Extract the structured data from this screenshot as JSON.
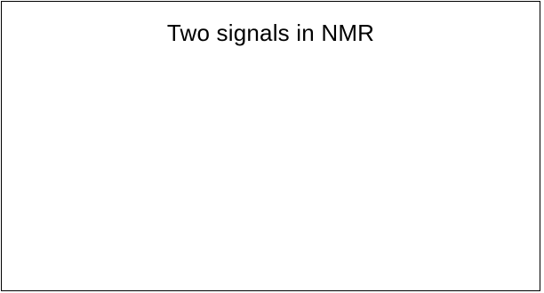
{
  "card": {
    "title": "Two signals in NMR"
  },
  "colors": {
    "background": "#ffffff",
    "border": "#000000",
    "text": "#000000"
  }
}
